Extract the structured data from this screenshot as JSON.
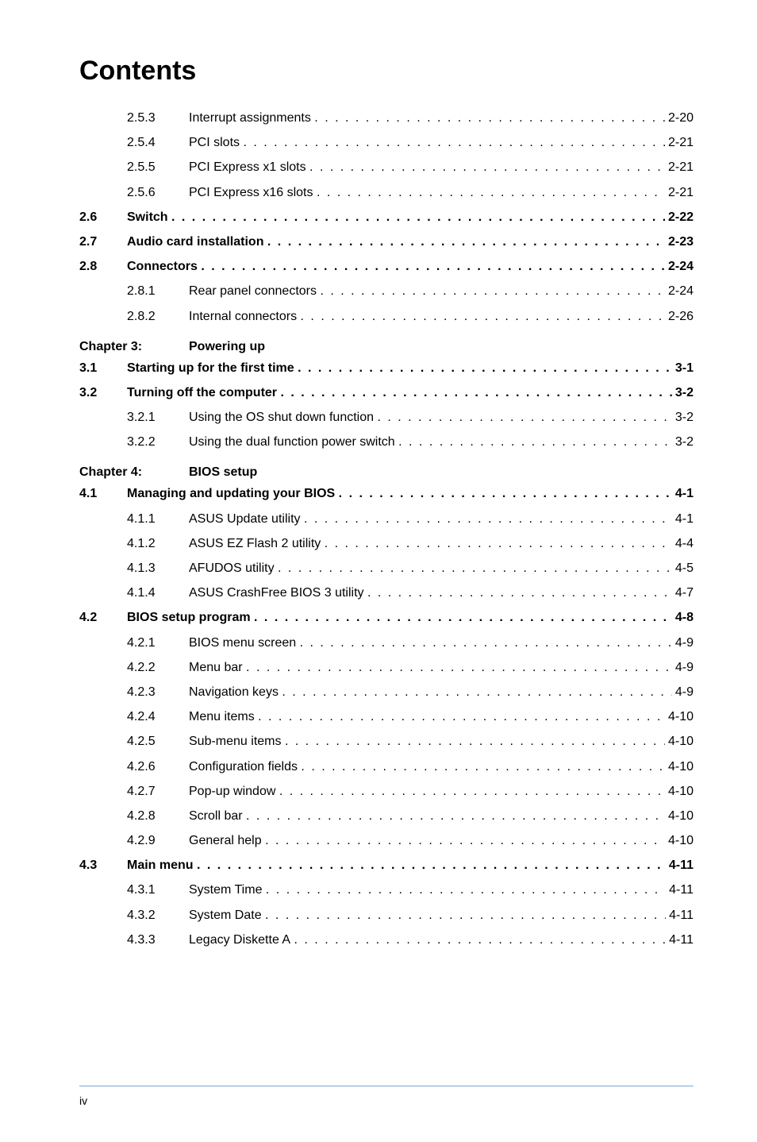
{
  "title": "Contents",
  "page_footer": "iv",
  "colors": {
    "text": "#000000",
    "background": "#ffffff",
    "footer_line": "#7aa7d6"
  },
  "typography": {
    "title_fontsize": 34,
    "body_fontsize": 16,
    "footer_fontsize": 14,
    "line_height": 1.95
  },
  "entries": [
    {
      "type": "sub",
      "num": "2.5.3",
      "label": "Interrupt assignments",
      "page": "2-20"
    },
    {
      "type": "sub",
      "num": "2.5.4",
      "label": "PCI slots",
      "page": "2-21"
    },
    {
      "type": "sub",
      "num": "2.5.5",
      "label": "PCI Express x1 slots",
      "page": "2-21"
    },
    {
      "type": "sub",
      "num": "2.5.6",
      "label": "PCI Express x16 slots",
      "page": "2-21"
    },
    {
      "type": "section",
      "section": "2.6",
      "label": "Switch",
      "page": "2-22"
    },
    {
      "type": "section",
      "section": "2.7",
      "label": "Audio card installation",
      "page": "2-23"
    },
    {
      "type": "section",
      "section": "2.8",
      "label": "Connectors",
      "page": "2-24"
    },
    {
      "type": "sub",
      "num": "2.8.1",
      "label": "Rear panel connectors",
      "page": "2-24"
    },
    {
      "type": "sub",
      "num": "2.8.2",
      "label": "Internal connectors",
      "page": "2-26"
    },
    {
      "type": "chapter",
      "chapter": "Chapter 3:",
      "title": "Powering up"
    },
    {
      "type": "section",
      "section": "3.1",
      "label": "Starting up for the first time",
      "page": "3-1"
    },
    {
      "type": "section",
      "section": "3.2",
      "label": "Turning off the computer",
      "page": "3-2"
    },
    {
      "type": "sub",
      "num": "3.2.1",
      "label": "Using the OS shut down function",
      "page": "3-2"
    },
    {
      "type": "sub",
      "num": "3.2.2",
      "label": "Using the dual function power switch",
      "page": "3-2"
    },
    {
      "type": "chapter",
      "chapter": "Chapter 4:",
      "title": "BIOS setup"
    },
    {
      "type": "section",
      "section": "4.1",
      "label": "Managing and updating your BIOS",
      "page": "4-1"
    },
    {
      "type": "sub",
      "num": "4.1.1",
      "label": "ASUS Update utility",
      "page": "4-1"
    },
    {
      "type": "sub",
      "num": "4.1.2",
      "label": "ASUS EZ Flash 2 utility",
      "page": "4-4"
    },
    {
      "type": "sub",
      "num": "4.1.3",
      "label": "AFUDOS utility",
      "page": "4-5"
    },
    {
      "type": "sub",
      "num": "4.1.4",
      "label": "ASUS CrashFree BIOS 3 utility",
      "page": "4-7"
    },
    {
      "type": "section",
      "section": "4.2",
      "label": "BIOS setup program",
      "page": "4-8"
    },
    {
      "type": "sub",
      "num": "4.2.1",
      "label": "BIOS menu screen",
      "page": "4-9"
    },
    {
      "type": "sub",
      "num": "4.2.2",
      "label": "Menu bar",
      "page": "4-9"
    },
    {
      "type": "sub",
      "num": "4.2.3",
      "label": "Navigation keys",
      "page": "4-9"
    },
    {
      "type": "sub",
      "num": "4.2.4",
      "label": "Menu items",
      "page": "4-10"
    },
    {
      "type": "sub",
      "num": "4.2.5",
      "label": "Sub-menu items",
      "page": "4-10"
    },
    {
      "type": "sub",
      "num": "4.2.6",
      "label": "Configuration fields",
      "page": "4-10"
    },
    {
      "type": "sub",
      "num": "4.2.7",
      "label": "Pop-up window",
      "page": "4-10"
    },
    {
      "type": "sub",
      "num": "4.2.8",
      "label": "Scroll bar",
      "page": "4-10"
    },
    {
      "type": "sub",
      "num": "4.2.9",
      "label": "General help",
      "page": "4-10"
    },
    {
      "type": "section",
      "section": "4.3",
      "label": "Main menu",
      "page": "4-11"
    },
    {
      "type": "sub",
      "num": "4.3.1",
      "label": "System Time",
      "page": "4-11"
    },
    {
      "type": "sub",
      "num": "4.3.2",
      "label": "System Date",
      "page": "4-11"
    },
    {
      "type": "sub",
      "num": "4.3.3",
      "label": "Legacy Diskette A",
      "page": "4-11"
    }
  ]
}
